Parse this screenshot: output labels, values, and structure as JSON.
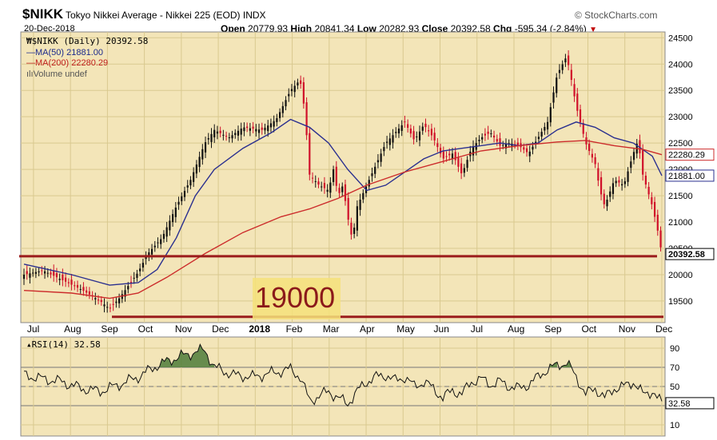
{
  "header": {
    "symbol": "$NIKK",
    "name": "Tokyo Nikkei Average - Nikkei 225 (EOD)  INDX",
    "brand": "© StockCharts.com",
    "date": "20-Dec-2018",
    "open_label": "Open",
    "open": "20779.93",
    "high_label": "High",
    "high": "20841.34",
    "low_label": "Low",
    "low": "20282.93",
    "close_label": "Close",
    "close": "20392.58",
    "chg_label": "Chg",
    "chg": "-595.34 (-2.84%)",
    "chg_arrow": "▼"
  },
  "legend": {
    "price": "$NIKK (Daily) 20392.58",
    "ma50": "MA(50) 21881.00",
    "ma200": "MA(200) 22280.29",
    "volume": "Volume undef"
  },
  "rsi_legend": "RSI(14) 32.58",
  "annotation": {
    "label": "19000",
    "support_levels": [
      20350,
      19200
    ]
  },
  "colors": {
    "panel_bg": "#f3e5b8",
    "ma50": "#2a2f8f",
    "ma200": "#cc2b2b",
    "candle_down": "#d0102a",
    "support": "#9b1c1c",
    "rsi_fill": "#4d7d3a"
  },
  "chart_data": [
    {
      "type": "candlestick",
      "title": "$NIKK (Daily) 20392.58",
      "x_labels": [
        "Jul",
        "Aug",
        "Sep",
        "Oct",
        "Nov",
        "Dec",
        "2018",
        "Feb",
        "Mar",
        "Apr",
        "May",
        "Jun",
        "Jul",
        "Aug",
        "Sep",
        "Oct",
        "Nov",
        "Dec"
      ],
      "ylim": [
        19150,
        24550
      ],
      "y_ticks": [
        19500,
        20000,
        20500,
        21000,
        21500,
        22000,
        22500,
        23000,
        23500,
        24000,
        24500
      ],
      "price_label": "20392.58",
      "ma_labels": [
        "22280.29",
        "21881.00"
      ],
      "series": [
        {
          "name": "$NIKK",
          "points": [
            [
              0,
              20000
            ],
            [
              4,
              20080
            ],
            [
              8,
              19900
            ],
            [
              12,
              19720
            ],
            [
              16,
              19500
            ],
            [
              18,
              19350
            ],
            [
              20,
              19550
            ],
            [
              22,
              19800
            ],
            [
              24,
              20050
            ],
            [
              26,
              20400
            ],
            [
              29,
              20700
            ],
            [
              32,
              21300
            ],
            [
              35,
              21800
            ],
            [
              38,
              22500
            ],
            [
              40,
              22750
            ],
            [
              43,
              22600
            ],
            [
              46,
              22800
            ],
            [
              50,
              22750
            ],
            [
              53,
              22950
            ],
            [
              56,
              23500
            ],
            [
              58,
              23700
            ],
            [
              59,
              23100
            ],
            [
              60,
              21900
            ],
            [
              62,
              21700
            ],
            [
              64,
              21600
            ],
            [
              65,
              22000
            ],
            [
              66,
              21500
            ],
            [
              67,
              21700
            ],
            [
              68,
              21100
            ],
            [
              69,
              20650
            ],
            [
              70,
              21300
            ],
            [
              72,
              21700
            ],
            [
              74,
              22100
            ],
            [
              76,
              22500
            ],
            [
              78,
              22700
            ],
            [
              80,
              22900
            ],
            [
              82,
              22550
            ],
            [
              84,
              22850
            ],
            [
              86,
              22600
            ],
            [
              88,
              22200
            ],
            [
              90,
              22300
            ],
            [
              92,
              21900
            ],
            [
              94,
              22400
            ],
            [
              96,
              22600
            ],
            [
              98,
              22700
            ],
            [
              100,
              22450
            ],
            [
              102,
              22500
            ],
            [
              104,
              22450
            ],
            [
              106,
              22300
            ],
            [
              108,
              22600
            ],
            [
              110,
              22900
            ],
            [
              112,
              23800
            ],
            [
              114,
              24150
            ],
            [
              115,
              23700
            ],
            [
              116,
              23200
            ],
            [
              118,
              22500
            ],
            [
              120,
              22100
            ],
            [
              121,
              21600
            ],
            [
              122,
              21300
            ],
            [
              124,
              21800
            ],
            [
              126,
              21700
            ],
            [
              128,
              22300
            ],
            [
              129,
              22550
            ],
            [
              130,
              21900
            ],
            [
              131,
              21600
            ],
            [
              132,
              21300
            ],
            [
              133,
              20900
            ],
            [
              134,
              20392
            ]
          ]
        },
        {
          "name": "MA(50)",
          "points": [
            [
              0,
              20200
            ],
            [
              10,
              20000
            ],
            [
              18,
              19800
            ],
            [
              24,
              19850
            ],
            [
              28,
              20100
            ],
            [
              32,
              20700
            ],
            [
              36,
              21500
            ],
            [
              40,
              22000
            ],
            [
              46,
              22400
            ],
            [
              52,
              22700
            ],
            [
              56,
              22950
            ],
            [
              60,
              22800
            ],
            [
              64,
              22500
            ],
            [
              68,
              22000
            ],
            [
              72,
              21600
            ],
            [
              76,
              21700
            ],
            [
              80,
              21950
            ],
            [
              84,
              22200
            ],
            [
              88,
              22350
            ],
            [
              92,
              22400
            ],
            [
              96,
              22450
            ],
            [
              100,
              22500
            ],
            [
              104,
              22450
            ],
            [
              108,
              22500
            ],
            [
              112,
              22750
            ],
            [
              116,
              22900
            ],
            [
              120,
              22800
            ],
            [
              124,
              22600
            ],
            [
              128,
              22500
            ],
            [
              132,
              22250
            ],
            [
              134,
              21881
            ]
          ]
        },
        {
          "name": "MA(200)",
          "points": [
            [
              0,
              19700
            ],
            [
              10,
              19650
            ],
            [
              18,
              19550
            ],
            [
              24,
              19650
            ],
            [
              30,
              19950
            ],
            [
              38,
              20400
            ],
            [
              46,
              20800
            ],
            [
              54,
              21100
            ],
            [
              60,
              21250
            ],
            [
              66,
              21450
            ],
            [
              72,
              21700
            ],
            [
              80,
              21950
            ],
            [
              88,
              22150
            ],
            [
              96,
              22350
            ],
            [
              104,
              22450
            ],
            [
              112,
              22520
            ],
            [
              118,
              22550
            ],
            [
              124,
              22450
            ],
            [
              130,
              22380
            ],
            [
              134,
              22280
            ]
          ]
        }
      ]
    },
    {
      "type": "line",
      "title": "RSI(14) 32.58",
      "ylim": [
        0,
        100
      ],
      "y_ticks": [
        10,
        30,
        50,
        70,
        90
      ],
      "value_label": "32.58",
      "series": [
        {
          "name": "RSI(14)",
          "points": [
            [
              0,
              62
            ],
            [
              4,
              58
            ],
            [
              8,
              55
            ],
            [
              12,
              48
            ],
            [
              16,
              45
            ],
            [
              20,
              52
            ],
            [
              24,
              60
            ],
            [
              28,
              72
            ],
            [
              32,
              80
            ],
            [
              36,
              86
            ],
            [
              38,
              88
            ],
            [
              40,
              70
            ],
            [
              44,
              62
            ],
            [
              48,
              60
            ],
            [
              52,
              64
            ],
            [
              56,
              68
            ],
            [
              58,
              60
            ],
            [
              60,
              35
            ],
            [
              62,
              40
            ],
            [
              64,
              45
            ],
            [
              66,
              38
            ],
            [
              68,
              32
            ],
            [
              70,
              45
            ],
            [
              72,
              55
            ],
            [
              74,
              60
            ],
            [
              76,
              62
            ],
            [
              78,
              56
            ],
            [
              80,
              60
            ],
            [
              82,
              50
            ],
            [
              84,
              55
            ],
            [
              86,
              48
            ],
            [
              88,
              38
            ],
            [
              90,
              46
            ],
            [
              92,
              42
            ],
            [
              94,
              55
            ],
            [
              96,
              58
            ],
            [
              98,
              52
            ],
            [
              100,
              55
            ],
            [
              102,
              50
            ],
            [
              104,
              48
            ],
            [
              106,
              52
            ],
            [
              108,
              60
            ],
            [
              110,
              68
            ],
            [
              112,
              72
            ],
            [
              114,
              75
            ],
            [
              116,
              60
            ],
            [
              118,
              42
            ],
            [
              120,
              48
            ],
            [
              122,
              38
            ],
            [
              124,
              48
            ],
            [
              126,
              50
            ],
            [
              128,
              55
            ],
            [
              130,
              42
            ],
            [
              132,
              45
            ],
            [
              133,
              38
            ],
            [
              134,
              32.58
            ]
          ]
        }
      ]
    }
  ]
}
